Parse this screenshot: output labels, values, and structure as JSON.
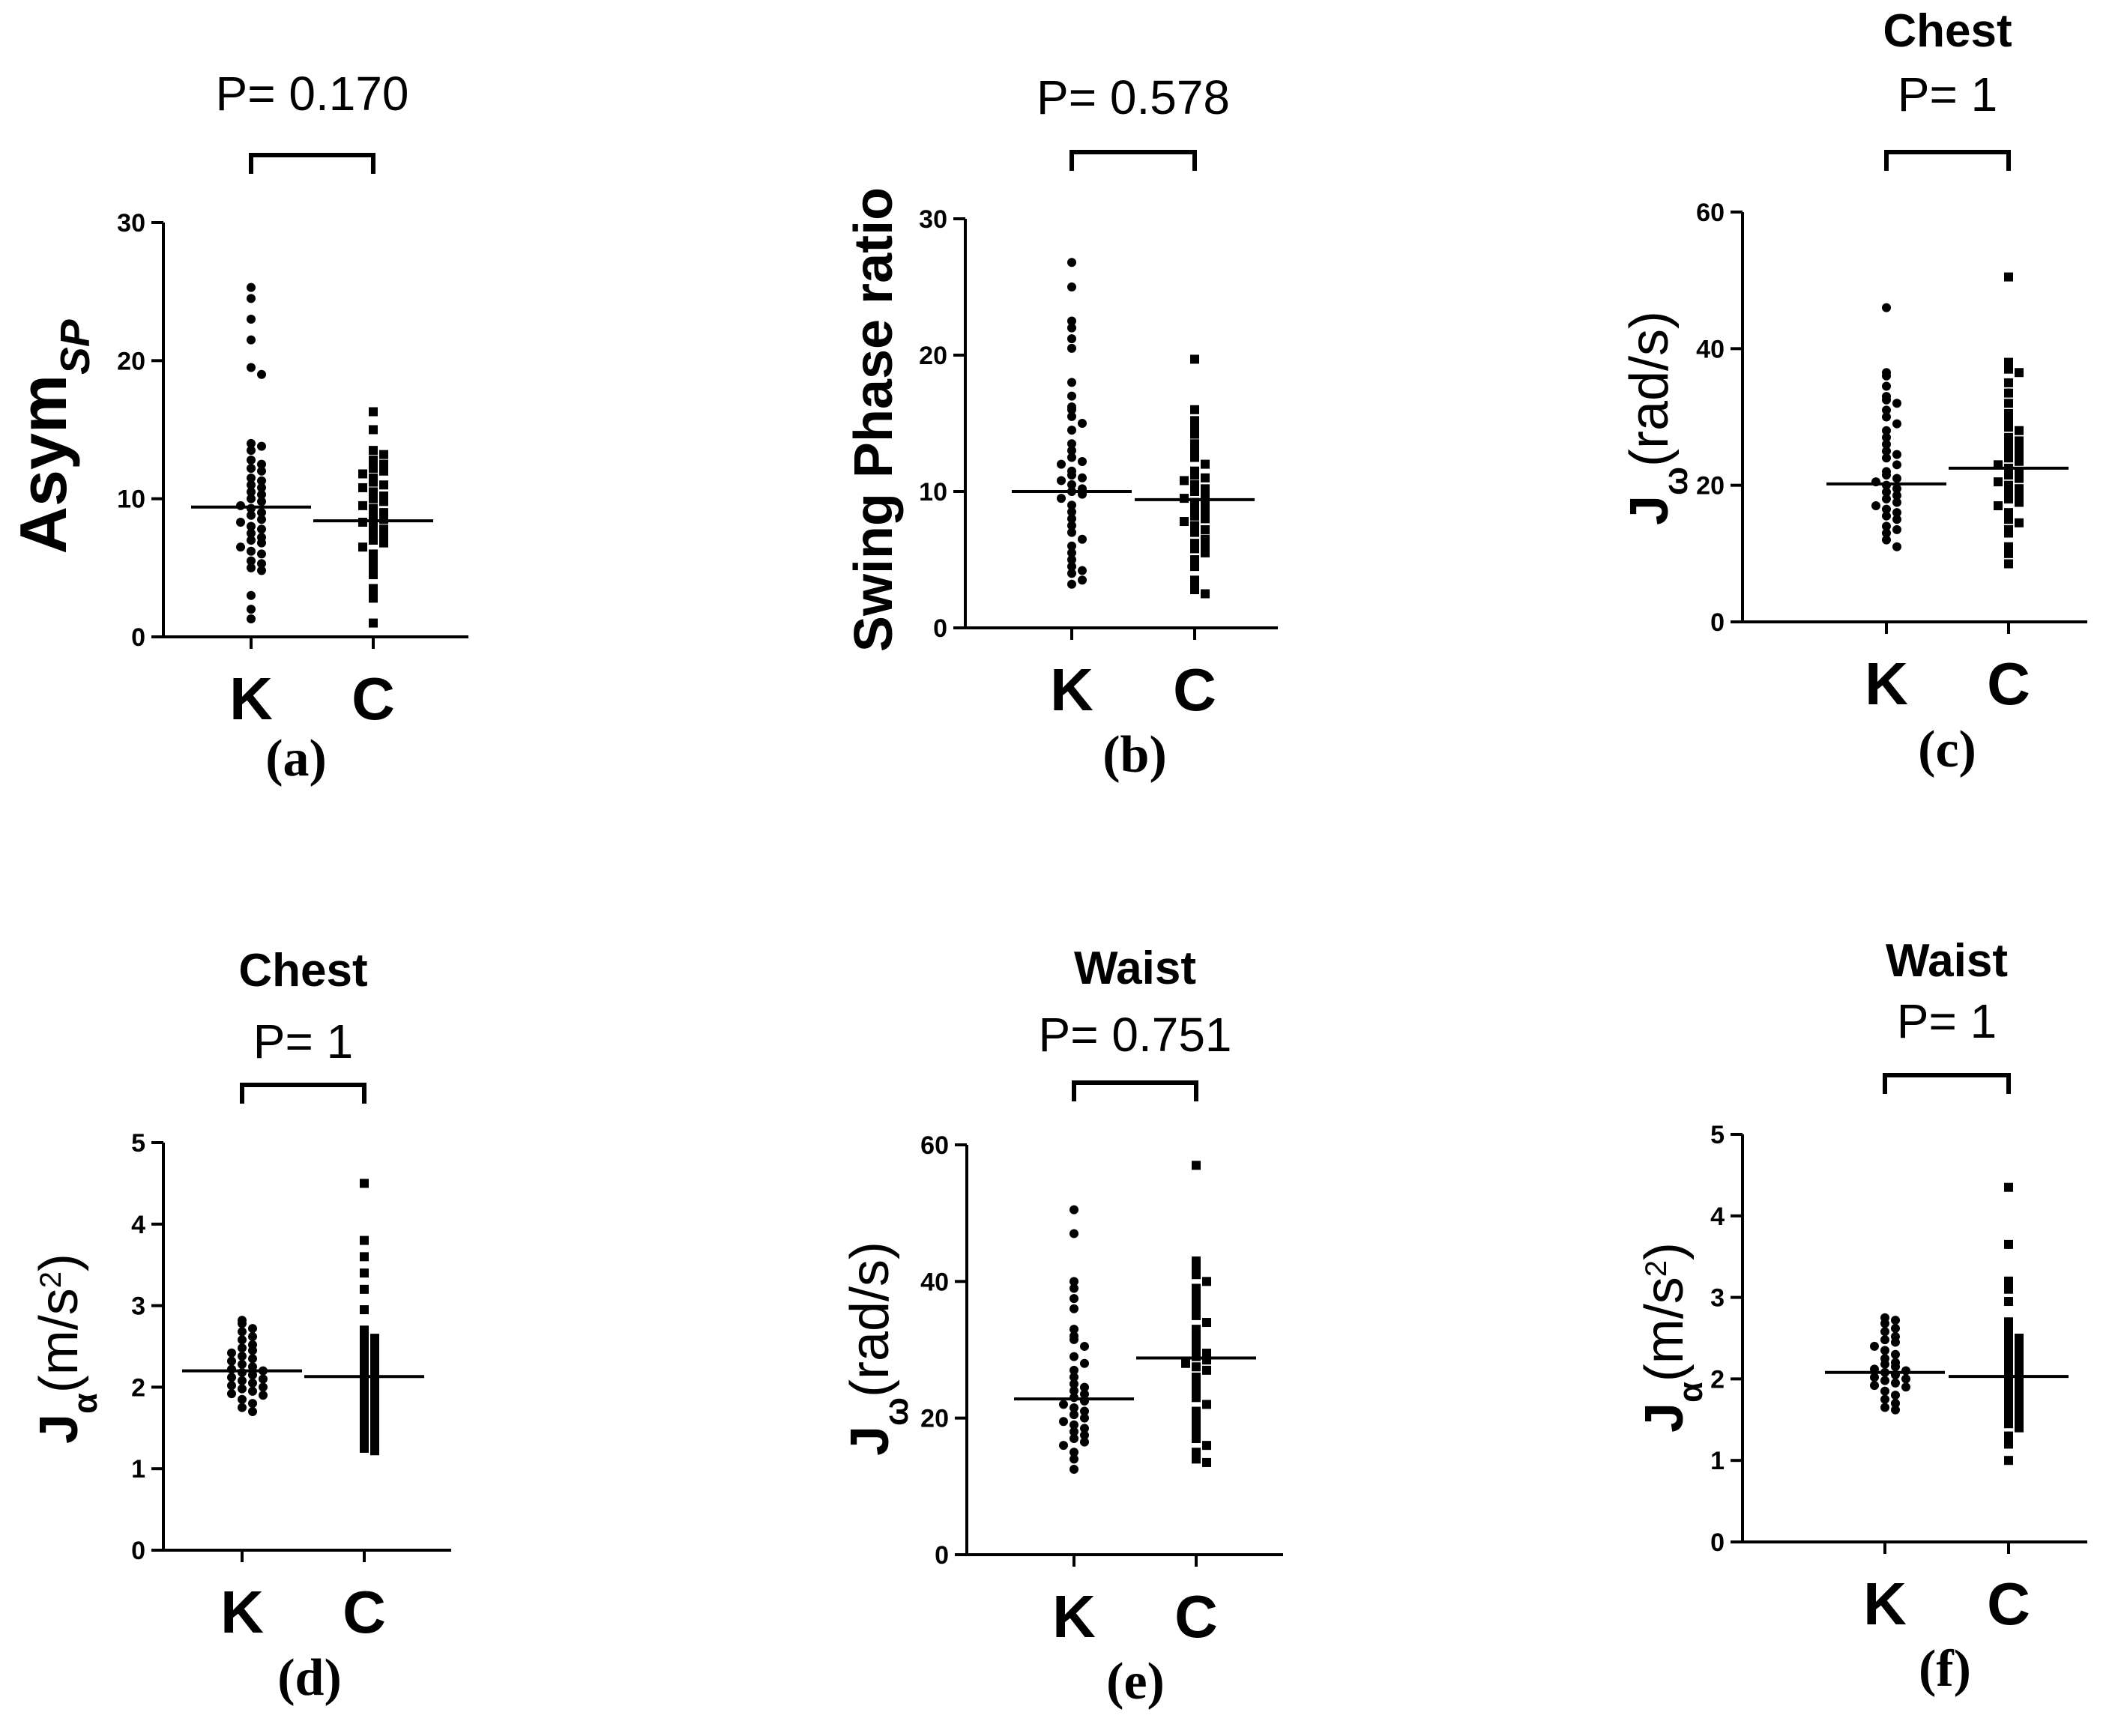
{
  "figure": {
    "panel_labels": [
      "(a)",
      "(b)",
      "(c)",
      "(d)",
      "(e)",
      "(f)"
    ]
  },
  "chart_data": [
    {
      "id": "a",
      "type": "scatter",
      "title": "",
      "p_label": "P= 0.170",
      "ylabel_main": "Asym",
      "ylabel_sub": "SP",
      "ylabel_sup": "",
      "ylabel_tail": "",
      "categories": [
        "K",
        "C"
      ],
      "ylim": [
        0,
        30
      ],
      "yticks": [
        0,
        10,
        20,
        30
      ],
      "series": [
        {
          "values": [
            25.3,
            24.5,
            23.0,
            21.5,
            19.5,
            19.0,
            14.0,
            13.8,
            13.5,
            12.8,
            12.5,
            12.2,
            12.0,
            11.5,
            11.3,
            11.0,
            10.8,
            10.5,
            10.3,
            10.0,
            9.8,
            9.5,
            9.3,
            9.0,
            8.8,
            8.5,
            8.3,
            8.0,
            7.8,
            7.5,
            7.2,
            7.0,
            6.8,
            6.5,
            6.2,
            6.0,
            5.5,
            5.3,
            5.0,
            4.8,
            3.0,
            2.0,
            1.3
          ],
          "median": 9.4
        },
        {
          "values": [
            16.3,
            15.0,
            13.5,
            13.2,
            12.8,
            12.5,
            12.2,
            12.0,
            11.8,
            11.5,
            11.2,
            11.0,
            10.8,
            10.5,
            10.2,
            10.0,
            9.8,
            9.5,
            9.3,
            9.0,
            8.8,
            8.5,
            8.3,
            8.0,
            7.8,
            7.5,
            7.2,
            7.0,
            6.8,
            6.5,
            6.0,
            5.5,
            5.0,
            4.5,
            3.5,
            3.2,
            2.8,
            1.0
          ],
          "median": 8.4
        }
      ]
    },
    {
      "id": "b",
      "type": "scatter",
      "title": "",
      "p_label": "P= 0.578",
      "ylabel_main": "Swing Phase ratio",
      "ylabel_sub": "",
      "ylabel_sup": "",
      "ylabel_tail": "",
      "categories": [
        "K",
        "C"
      ],
      "ylim": [
        0,
        30
      ],
      "yticks": [
        0,
        10,
        20,
        30
      ],
      "series": [
        {
          "values": [
            26.8,
            25.0,
            22.5,
            22.0,
            21.2,
            20.5,
            18.0,
            17.0,
            16.2,
            16.0,
            15.5,
            15.0,
            14.5,
            13.5,
            13.0,
            12.5,
            12.2,
            12.0,
            11.5,
            11.2,
            11.0,
            10.8,
            10.5,
            10.2,
            10.0,
            9.8,
            9.5,
            9.0,
            8.5,
            8.0,
            7.5,
            7.0,
            6.5,
            6.0,
            5.5,
            5.0,
            4.5,
            4.2,
            4.0,
            3.5,
            3.2
          ],
          "median": 10.0
        },
        {
          "values": [
            19.7,
            16.0,
            15.2,
            14.8,
            14.2,
            13.5,
            13.0,
            12.5,
            12.0,
            11.5,
            11.2,
            11.0,
            10.8,
            10.5,
            10.2,
            10.0,
            9.8,
            9.5,
            9.2,
            9.0,
            8.8,
            8.5,
            8.2,
            8.0,
            7.8,
            7.5,
            7.2,
            7.0,
            6.5,
            6.2,
            6.0,
            5.8,
            5.5,
            5.0,
            4.5,
            3.5,
            3.0,
            2.8,
            2.5
          ],
          "median": 9.4
        }
      ]
    },
    {
      "id": "c",
      "type": "scatter",
      "title": "Chest",
      "p_label": "P= 1",
      "ylabel_main": "J",
      "ylabel_sub": "ω",
      "ylabel_sup": "",
      "ylabel_tail": "(rad/s)",
      "categories": [
        "K",
        "C"
      ],
      "ylim": [
        0,
        60
      ],
      "yticks": [
        0,
        20,
        40,
        60
      ],
      "series": [
        {
          "values": [
            46.0,
            36.5,
            36.0,
            34.5,
            33.0,
            32.5,
            32.0,
            31.0,
            30.0,
            29.0,
            28.0,
            27.0,
            26.0,
            25.0,
            24.5,
            24.0,
            23.0,
            22.0,
            21.5,
            21.0,
            20.5,
            20.0,
            19.5,
            19.0,
            18.5,
            18.0,
            17.5,
            17.0,
            16.5,
            16.0,
            15.5,
            15.0,
            14.0,
            13.5,
            13.0,
            12.0,
            11.0
          ],
          "median": 20.2
        },
        {
          "values": [
            50.5,
            38.0,
            37.0,
            36.5,
            35.0,
            33.5,
            32.0,
            30.5,
            29.5,
            28.5,
            28.0,
            27.0,
            26.5,
            26.0,
            25.5,
            25.0,
            24.5,
            24.0,
            23.5,
            23.0,
            22.5,
            22.0,
            21.5,
            21.0,
            20.5,
            20.0,
            19.5,
            19.0,
            18.5,
            18.0,
            17.5,
            17.0,
            16.0,
            15.0,
            14.5,
            13.5,
            13.0,
            11.0,
            10.0,
            8.5
          ],
          "median": 22.5
        }
      ]
    },
    {
      "id": "d",
      "type": "scatter",
      "title": "Chest",
      "p_label": "P= 1",
      "ylabel_main": "J",
      "ylabel_sub": "α",
      "ylabel_sup": "2",
      "ylabel_tail": "(m/s",
      "categories": [
        "K",
        "C"
      ],
      "ylim": [
        0,
        5
      ],
      "yticks": [
        0,
        1,
        2,
        3,
        4,
        5
      ],
      "series": [
        {
          "values": [
            2.82,
            2.78,
            2.72,
            2.68,
            2.62,
            2.58,
            2.52,
            2.48,
            2.45,
            2.42,
            2.38,
            2.35,
            2.32,
            2.28,
            2.25,
            2.22,
            2.2,
            2.18,
            2.15,
            2.12,
            2.1,
            2.08,
            2.05,
            2.02,
            2.0,
            1.98,
            1.95,
            1.92,
            1.9,
            1.85,
            1.8,
            1.75,
            1.7
          ],
          "median": 2.2
        },
        {
          "values": [
            4.5,
            3.8,
            3.6,
            3.4,
            3.2,
            2.95,
            2.7,
            2.65,
            2.6,
            2.55,
            2.5,
            2.45,
            2.4,
            2.35,
            2.3,
            2.25,
            2.2,
            2.15,
            2.1,
            2.05,
            2.0,
            1.95,
            1.9,
            1.85,
            1.8,
            1.75,
            1.7,
            1.65,
            1.6,
            1.55,
            1.5,
            1.45,
            1.4,
            1.35,
            1.3,
            1.25,
            1.22
          ],
          "median": 2.13
        }
      ]
    },
    {
      "id": "e",
      "type": "scatter",
      "title": "Waist",
      "p_label": "P= 0.751",
      "ylabel_main": "J",
      "ylabel_sub": "ω",
      "ylabel_sup": "",
      "ylabel_tail": "(rad/s)",
      "categories": [
        "K",
        "C"
      ],
      "ylim": [
        0,
        60
      ],
      "yticks": [
        0,
        20,
        40,
        60
      ],
      "series": [
        {
          "values": [
            50.5,
            47.0,
            40.0,
            39.0,
            37.5,
            36.0,
            33.0,
            32.0,
            31.5,
            30.5,
            29.0,
            28.0,
            27.0,
            26.0,
            25.0,
            24.5,
            24.0,
            23.5,
            23.0,
            22.5,
            22.0,
            21.5,
            21.0,
            20.5,
            20.0,
            19.5,
            19.0,
            18.5,
            18.0,
            17.5,
            17.0,
            16.5,
            16.0,
            15.0,
            14.0,
            12.5
          ],
          "median": 22.8
        },
        {
          "values": [
            57.0,
            43.0,
            42.0,
            41.0,
            40.0,
            39.0,
            38.0,
            37.0,
            36.0,
            35.0,
            34.0,
            33.0,
            32.0,
            31.0,
            30.0,
            29.5,
            29.0,
            28.5,
            28.0,
            27.5,
            27.0,
            26.0,
            25.0,
            24.0,
            23.0,
            22.0,
            21.0,
            20.0,
            19.0,
            18.0,
            17.0,
            16.0,
            15.0,
            14.0,
            13.5
          ],
          "median": 28.8
        }
      ]
    },
    {
      "id": "f",
      "type": "scatter",
      "title": "Waist",
      "p_label": "P= 1",
      "ylabel_main": "J",
      "ylabel_sub": "α",
      "ylabel_sup": "2",
      "ylabel_tail": "(m/s",
      "categories": [
        "K",
        "C"
      ],
      "ylim": [
        0,
        5
      ],
      "yticks": [
        0,
        1,
        2,
        3,
        4,
        5
      ],
      "series": [
        {
          "values": [
            2.75,
            2.72,
            2.68,
            2.62,
            2.58,
            2.52,
            2.48,
            2.45,
            2.4,
            2.35,
            2.3,
            2.25,
            2.2,
            2.18,
            2.15,
            2.12,
            2.1,
            2.08,
            2.05,
            2.02,
            2.0,
            1.98,
            1.95,
            1.92,
            1.9,
            1.85,
            1.8,
            1.75,
            1.7,
            1.65,
            1.62
          ],
          "median": 2.08
        },
        {
          "values": [
            4.35,
            3.65,
            3.2,
            3.1,
            2.95,
            2.7,
            2.6,
            2.55,
            2.5,
            2.45,
            2.4,
            2.35,
            2.3,
            2.25,
            2.2,
            2.15,
            2.1,
            2.05,
            2.0,
            1.95,
            1.9,
            1.85,
            1.8,
            1.75,
            1.7,
            1.65,
            1.6,
            1.55,
            1.5,
            1.45,
            1.4,
            1.3,
            1.2,
            1.0
          ],
          "median": 2.03
        }
      ]
    }
  ]
}
